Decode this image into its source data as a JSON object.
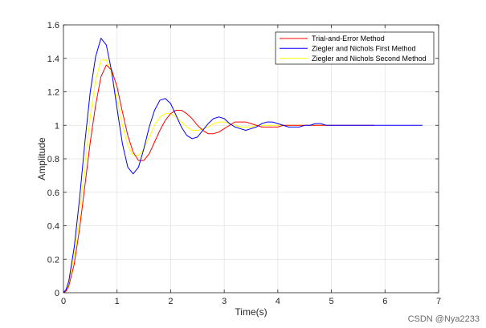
{
  "chart_data": {
    "type": "line",
    "title": "",
    "xlabel": "Time(s)",
    "ylabel": "Amplitude",
    "xlim": [
      0,
      7
    ],
    "ylim": [
      0,
      1.6
    ],
    "xticks": [
      "0",
      "1",
      "2",
      "3",
      "4",
      "5",
      "6",
      "7"
    ],
    "yticks": [
      "0",
      "0.2",
      "0.4",
      "0.6",
      "0.8",
      "1",
      "1.2",
      "1.4",
      "1.6"
    ],
    "grid": true,
    "legend_position": "top-right",
    "series": [
      {
        "name": "Trial-and-Error Method",
        "color": "#ff0000",
        "x": [
          0,
          0.05,
          0.1,
          0.2,
          0.3,
          0.4,
          0.5,
          0.6,
          0.7,
          0.8,
          0.9,
          1.0,
          1.1,
          1.2,
          1.3,
          1.4,
          1.5,
          1.6,
          1.7,
          1.8,
          1.9,
          2.0,
          2.1,
          2.2,
          2.3,
          2.4,
          2.5,
          2.6,
          2.7,
          2.8,
          2.9,
          3.0,
          3.1,
          3.2,
          3.3,
          3.4,
          3.5,
          3.6,
          3.7,
          3.8,
          3.9,
          4.0,
          4.1,
          4.2,
          4.3,
          4.4,
          4.5,
          4.6,
          4.7,
          4.8,
          4.9,
          5.0,
          5.2,
          5.4,
          5.6,
          5.8
        ],
        "y": [
          0,
          0.01,
          0.04,
          0.17,
          0.38,
          0.64,
          0.9,
          1.12,
          1.29,
          1.36,
          1.33,
          1.23,
          1.08,
          0.94,
          0.84,
          0.79,
          0.79,
          0.83,
          0.9,
          0.97,
          1.03,
          1.07,
          1.09,
          1.09,
          1.07,
          1.04,
          1.0,
          0.97,
          0.95,
          0.95,
          0.96,
          0.98,
          1.0,
          1.02,
          1.02,
          1.02,
          1.01,
          1.0,
          0.99,
          0.99,
          0.99,
          0.99,
          1.0,
          1.0,
          1.0,
          1.0,
          1.0,
          1.0,
          1.0,
          1.0,
          1.0,
          1.0,
          1.0,
          1.0,
          1.0,
          1.0
        ]
      },
      {
        "name": "Ziegler and Nichols First Method",
        "color": "#0000ff",
        "x": [
          0,
          0.05,
          0.1,
          0.2,
          0.3,
          0.4,
          0.5,
          0.6,
          0.7,
          0.8,
          0.9,
          1.0,
          1.1,
          1.2,
          1.3,
          1.4,
          1.5,
          1.6,
          1.7,
          1.8,
          1.9,
          2.0,
          2.1,
          2.2,
          2.3,
          2.4,
          2.5,
          2.6,
          2.7,
          2.8,
          2.9,
          3.0,
          3.1,
          3.2,
          3.3,
          3.4,
          3.5,
          3.6,
          3.7,
          3.8,
          3.9,
          4.0,
          4.1,
          4.2,
          4.3,
          4.4,
          4.5,
          4.6,
          4.7,
          4.8,
          4.9,
          5.0,
          5.2,
          5.4,
          5.6,
          5.8,
          6.0,
          6.2,
          6.4,
          6.6,
          6.7
        ],
        "y": [
          0,
          0.02,
          0.07,
          0.27,
          0.56,
          0.9,
          1.2,
          1.41,
          1.52,
          1.48,
          1.32,
          1.1,
          0.89,
          0.75,
          0.71,
          0.75,
          0.86,
          0.99,
          1.09,
          1.15,
          1.16,
          1.13,
          1.06,
          0.99,
          0.94,
          0.92,
          0.93,
          0.97,
          1.01,
          1.04,
          1.05,
          1.04,
          1.01,
          0.99,
          0.98,
          0.97,
          0.98,
          0.99,
          1.01,
          1.02,
          1.02,
          1.01,
          1.0,
          0.99,
          0.99,
          0.99,
          1.0,
          1.0,
          1.01,
          1.01,
          1.0,
          1.0,
          1.0,
          1.0,
          1.0,
          1.0,
          1.0,
          1.0,
          1.0,
          1.0,
          1.0
        ]
      },
      {
        "name": "Ziegler and Nichols Second Method",
        "color": "#ffff00",
        "x": [
          0,
          0.05,
          0.1,
          0.2,
          0.3,
          0.4,
          0.5,
          0.6,
          0.7,
          0.8,
          0.9,
          1.0,
          1.1,
          1.2,
          1.3,
          1.4,
          1.5,
          1.6,
          1.7,
          1.8,
          1.9,
          2.0,
          2.1,
          2.2,
          2.3,
          2.4,
          2.5,
          2.6,
          2.7,
          2.8,
          2.9,
          3.0,
          3.1,
          3.2,
          3.3,
          3.4,
          3.5,
          3.6,
          3.7,
          3.8,
          3.9,
          4.0,
          4.2,
          4.4,
          4.6,
          4.8,
          5.0
        ],
        "y": [
          0,
          0.015,
          0.055,
          0.22,
          0.47,
          0.77,
          1.05,
          1.27,
          1.39,
          1.39,
          1.3,
          1.15,
          1.0,
          0.88,
          0.82,
          0.82,
          0.86,
          0.93,
          1.0,
          1.05,
          1.07,
          1.07,
          1.05,
          1.02,
          0.99,
          0.97,
          0.97,
          0.98,
          0.99,
          1.01,
          1.02,
          1.02,
          1.01,
          1.0,
          0.99,
          0.99,
          0.99,
          1.0,
          1.0,
          1.0,
          1.0,
          1.0,
          1.0,
          1.0,
          1.0,
          1.0,
          1.0
        ]
      }
    ]
  },
  "watermark": "CSDN @Nya2233"
}
